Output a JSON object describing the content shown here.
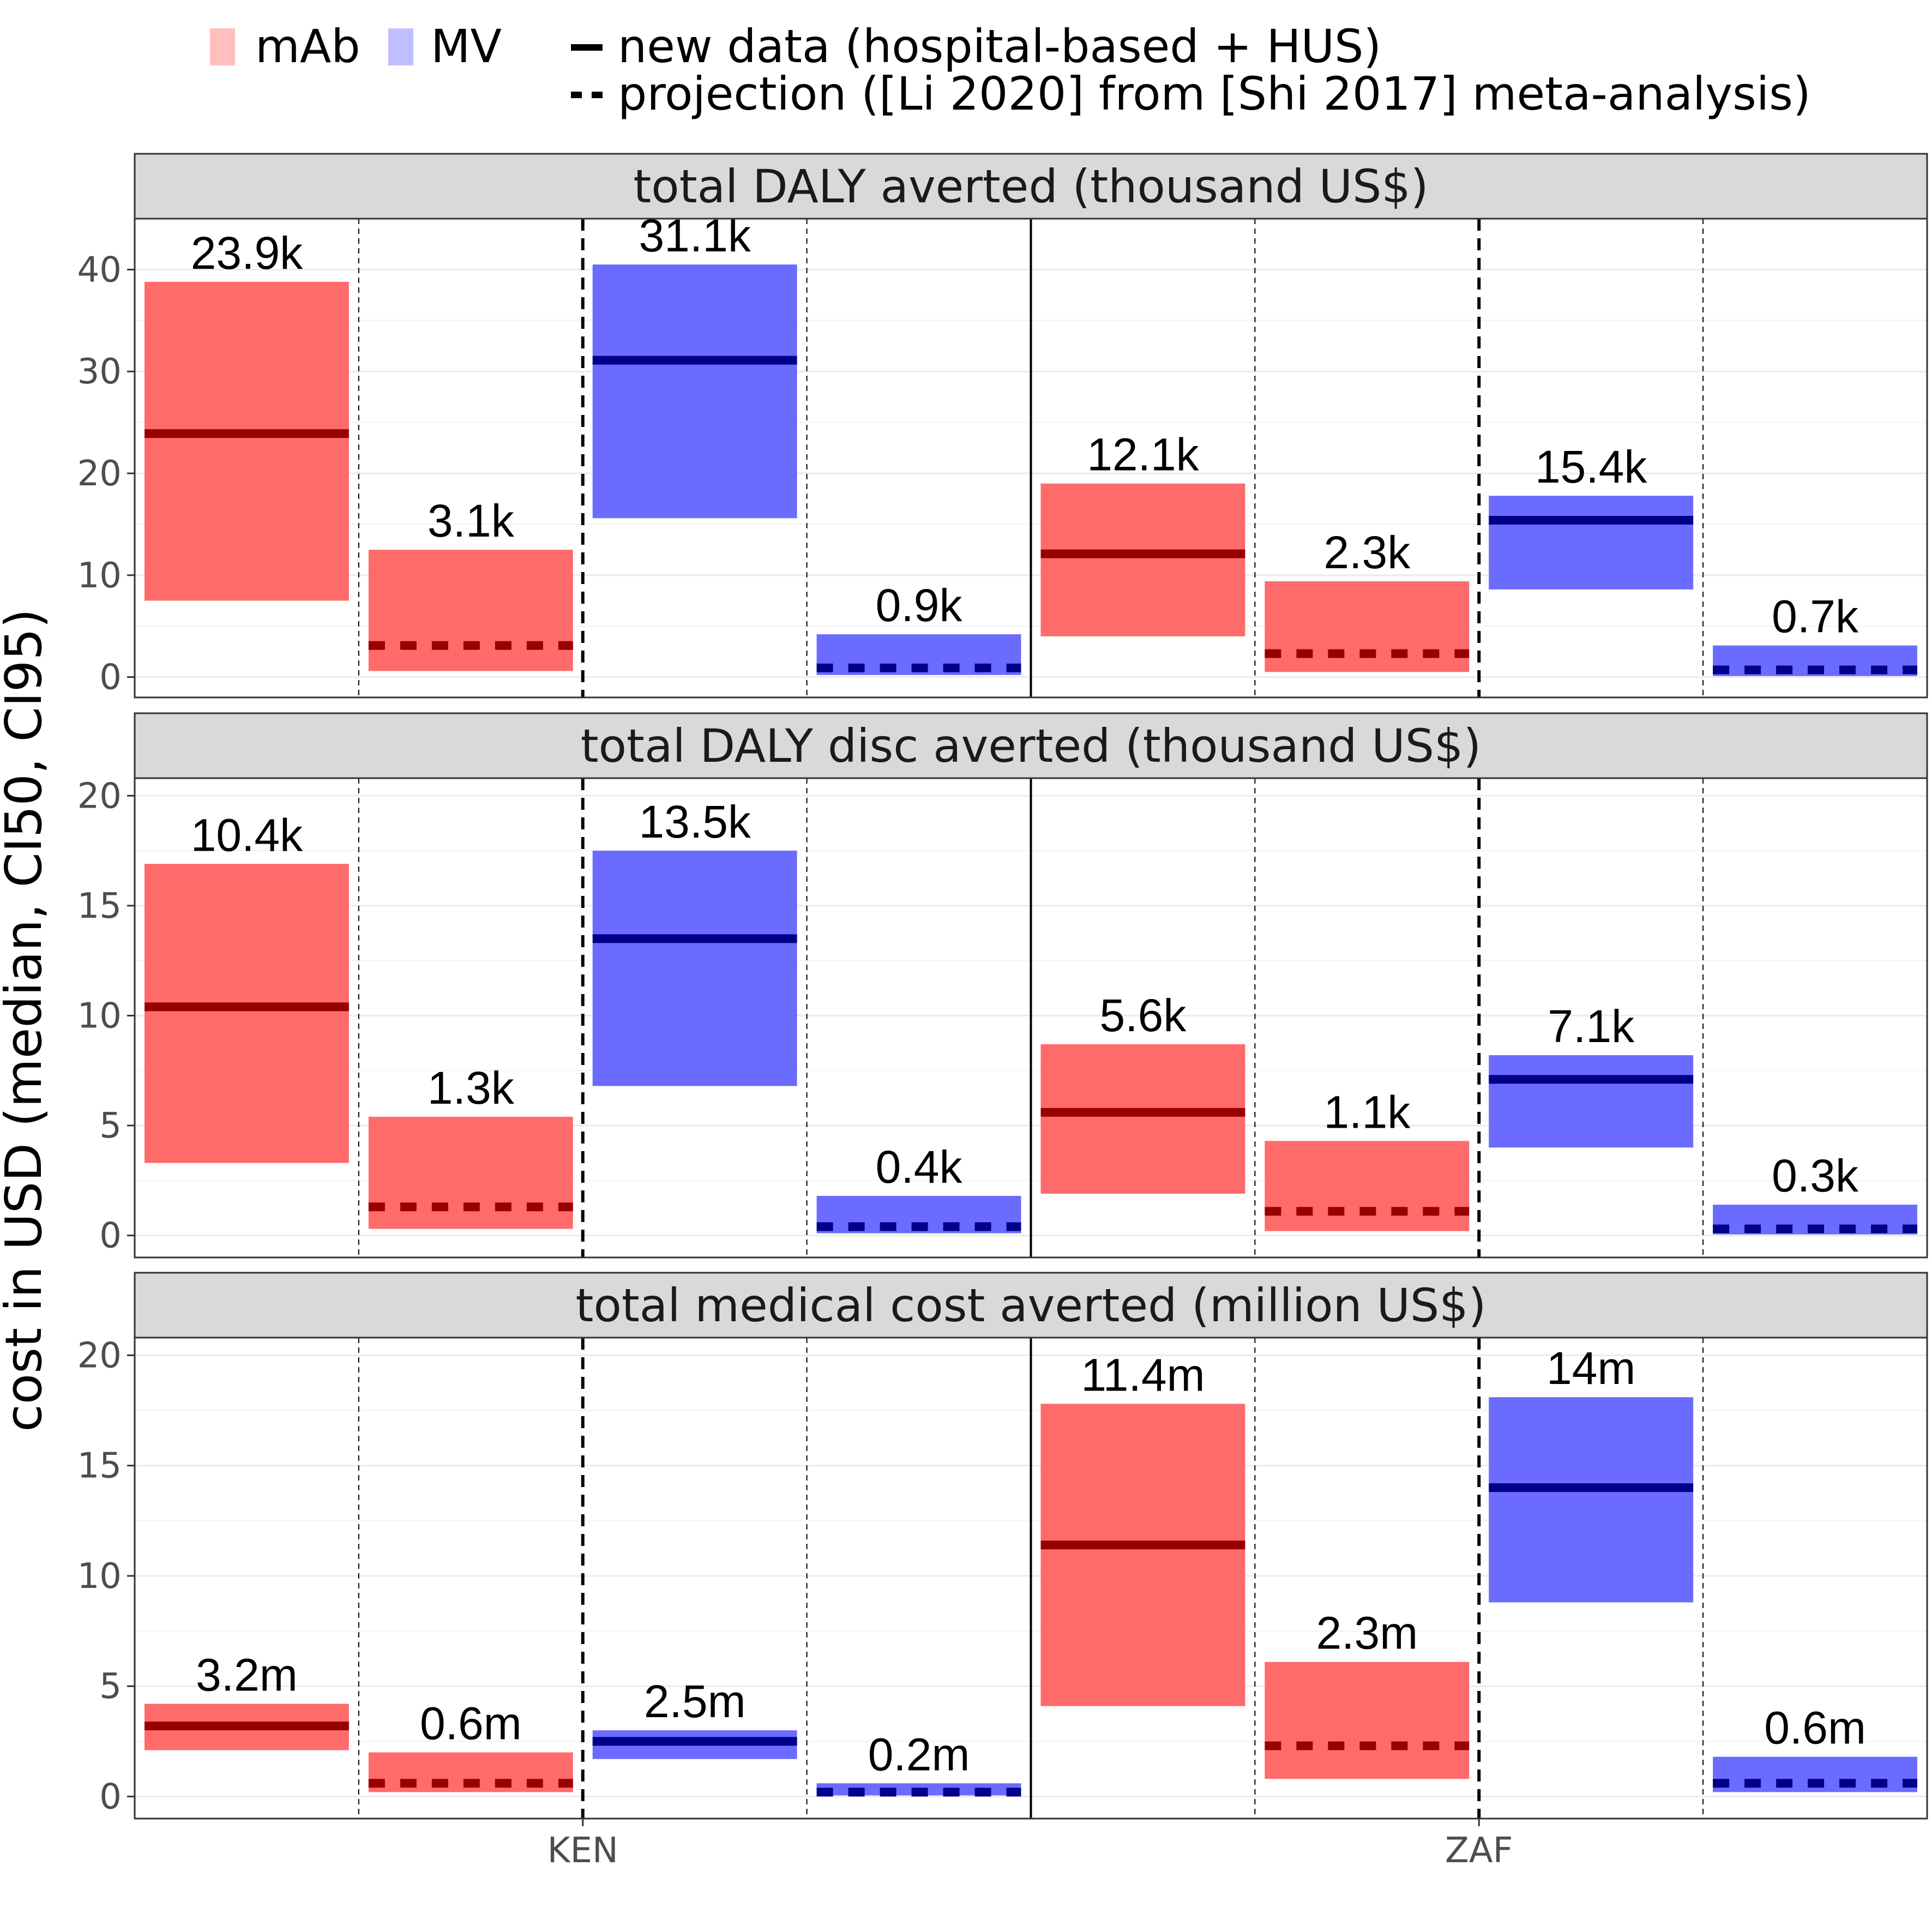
{
  "chart_data": {
    "type": "bar",
    "description_note": "",
    "ylabel": "cost in USD (median, CI50, CI95)",
    "countries": [
      "KEN",
      "ZAF"
    ],
    "legend": {
      "fill": [
        {
          "name": "mAb",
          "color": "#ff6b6b"
        },
        {
          "name": "MV",
          "color": "#6b6bff"
        }
      ],
      "linetype": [
        {
          "name": "new data (hospital-based + HUS)",
          "style": "solid"
        },
        {
          "name": "projection ([Li 2020] from [Shi 2017] meta-analysis)",
          "style": "dashed"
        }
      ],
      "position": "top"
    },
    "colors": {
      "mAb_fill": "#ff6b6b",
      "MV_fill": "#6b6bff",
      "mAb_line": "#990000",
      "MV_line": "#00008b",
      "strip_bg": "#d9d9d9"
    },
    "panels": [
      {
        "title": "total DALY averted (thousand US$)",
        "ylim": [
          -2,
          45
        ],
        "yticks": [
          0,
          10,
          20,
          30,
          40
        ],
        "bars": [
          {
            "country": "KEN",
            "intervention": "mAb",
            "source": "new data",
            "low": 7.5,
            "high": 38.8,
            "median": 23.9,
            "label": "23.9k"
          },
          {
            "country": "KEN",
            "intervention": "mAb",
            "source": "projection",
            "low": 0.6,
            "high": 12.5,
            "median": 3.1,
            "label": "3.1k"
          },
          {
            "country": "KEN",
            "intervention": "MV",
            "source": "new data",
            "low": 15.6,
            "high": 40.5,
            "median": 31.1,
            "label": "31.1k"
          },
          {
            "country": "KEN",
            "intervention": "MV",
            "source": "projection",
            "low": 0.2,
            "high": 4.2,
            "median": 0.9,
            "label": "0.9k"
          },
          {
            "country": "ZAF",
            "intervention": "mAb",
            "source": "new data",
            "low": 4.0,
            "high": 19.0,
            "median": 12.1,
            "label": "12.1k"
          },
          {
            "country": "ZAF",
            "intervention": "mAb",
            "source": "projection",
            "low": 0.5,
            "high": 9.4,
            "median": 2.3,
            "label": "2.3k"
          },
          {
            "country": "ZAF",
            "intervention": "MV",
            "source": "new data",
            "low": 8.6,
            "high": 17.8,
            "median": 15.4,
            "label": "15.4k"
          },
          {
            "country": "ZAF",
            "intervention": "MV",
            "source": "projection",
            "low": 0.1,
            "high": 3.1,
            "median": 0.7,
            "label": "0.7k"
          }
        ]
      },
      {
        "title": "total DALY disc averted (thousand US$)",
        "ylim": [
          -1,
          20.8
        ],
        "yticks": [
          0,
          5,
          10,
          15,
          20
        ],
        "bars": [
          {
            "country": "KEN",
            "intervention": "mAb",
            "source": "new data",
            "low": 3.3,
            "high": 16.9,
            "median": 10.4,
            "label": "10.4k"
          },
          {
            "country": "KEN",
            "intervention": "mAb",
            "source": "projection",
            "low": 0.3,
            "high": 5.4,
            "median": 1.3,
            "label": "1.3k"
          },
          {
            "country": "KEN",
            "intervention": "MV",
            "source": "new data",
            "low": 6.8,
            "high": 17.5,
            "median": 13.5,
            "label": "13.5k"
          },
          {
            "country": "KEN",
            "intervention": "MV",
            "source": "projection",
            "low": 0.1,
            "high": 1.8,
            "median": 0.4,
            "label": "0.4k"
          },
          {
            "country": "ZAF",
            "intervention": "mAb",
            "source": "new data",
            "low": 1.9,
            "high": 8.7,
            "median": 5.6,
            "label": "5.6k"
          },
          {
            "country": "ZAF",
            "intervention": "mAb",
            "source": "projection",
            "low": 0.2,
            "high": 4.3,
            "median": 1.1,
            "label": "1.1k"
          },
          {
            "country": "ZAF",
            "intervention": "MV",
            "source": "new data",
            "low": 4.0,
            "high": 8.2,
            "median": 7.1,
            "label": "7.1k"
          },
          {
            "country": "ZAF",
            "intervention": "MV",
            "source": "projection",
            "low": 0.05,
            "high": 1.4,
            "median": 0.3,
            "label": "0.3k"
          }
        ]
      },
      {
        "title": "total medical cost averted (million US$)",
        "ylim": [
          -1,
          20.8
        ],
        "yticks": [
          0,
          5,
          10,
          15,
          20
        ],
        "bars": [
          {
            "country": "KEN",
            "intervention": "mAb",
            "source": "new data",
            "low": 2.1,
            "high": 4.2,
            "median": 3.2,
            "label": "3.2m"
          },
          {
            "country": "KEN",
            "intervention": "mAb",
            "source": "projection",
            "low": 0.2,
            "high": 2.0,
            "median": 0.6,
            "label": "0.6m"
          },
          {
            "country": "KEN",
            "intervention": "MV",
            "source": "new data",
            "low": 1.7,
            "high": 3.0,
            "median": 2.5,
            "label": "2.5m"
          },
          {
            "country": "KEN",
            "intervention": "MV",
            "source": "projection",
            "low": 0.05,
            "high": 0.6,
            "median": 0.2,
            "label": "0.2m"
          },
          {
            "country": "ZAF",
            "intervention": "mAb",
            "source": "new data",
            "low": 4.1,
            "high": 17.8,
            "median": 11.4,
            "label": "11.4m"
          },
          {
            "country": "ZAF",
            "intervention": "mAb",
            "source": "projection",
            "low": 0.8,
            "high": 6.1,
            "median": 2.3,
            "label": "2.3m"
          },
          {
            "country": "ZAF",
            "intervention": "MV",
            "source": "new data",
            "low": 8.8,
            "high": 18.1,
            "median": 14,
            "label": "14m"
          },
          {
            "country": "ZAF",
            "intervention": "MV",
            "source": "projection",
            "low": 0.2,
            "high": 1.8,
            "median": 0.6,
            "label": "0.6m"
          }
        ]
      }
    ]
  }
}
